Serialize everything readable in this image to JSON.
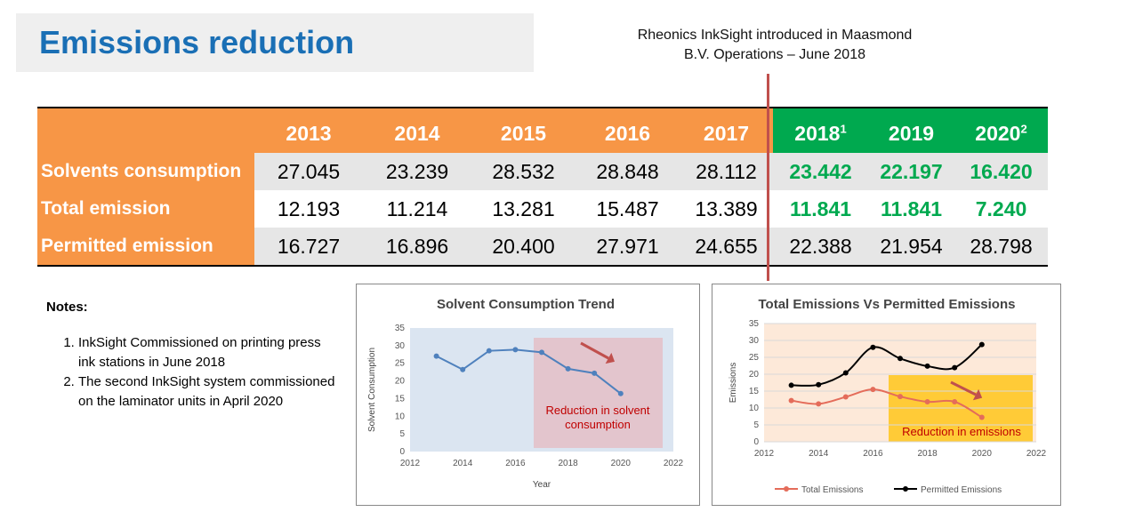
{
  "header": {
    "title": "Emissions reduction"
  },
  "intro_note": {
    "line1": "Rheonics InkSight introduced in Maasmond",
    "line2": "B.V. Operations – June 2018"
  },
  "table": {
    "years": [
      {
        "label": "2013",
        "sup": ""
      },
      {
        "label": "2014",
        "sup": ""
      },
      {
        "label": "2015",
        "sup": ""
      },
      {
        "label": "2016",
        "sup": ""
      },
      {
        "label": "2017",
        "sup": ""
      },
      {
        "label": "2018",
        "sup": "1"
      },
      {
        "label": "2019",
        "sup": ""
      },
      {
        "label": "2020",
        "sup": "2"
      }
    ],
    "rows": [
      {
        "label": "Solvents consumption",
        "values": [
          "27.045",
          "23.239",
          "28.532",
          "28.848",
          "28.112",
          "23.442",
          "22.197",
          "16.420"
        ]
      },
      {
        "label": "Total emission",
        "values": [
          "12.193",
          "11.214",
          "13.281",
          "15.487",
          "13.389",
          "11.841",
          "11.841",
          "7.240"
        ]
      },
      {
        "label": "Permitted emission",
        "values": [
          "16.727",
          "16.896",
          "20.400",
          "27.971",
          "24.655",
          "22.388",
          "21.954",
          "28.798"
        ]
      }
    ],
    "colors": {
      "header_orange": "#f79646",
      "header_green": "#00a94f",
      "highlight_text": "#00a94f"
    }
  },
  "notes": {
    "heading": "Notes:",
    "items": [
      "InkSight Commissioned on printing press ink stations in June 2018",
      "The second InkSight system commissioned on the laminator units in April 2020"
    ]
  },
  "chart_data": [
    {
      "type": "line",
      "title": "Solvent Consumption Trend",
      "xlabel": "Year",
      "ylabel": "Solvent Consumption",
      "xlim": [
        2012,
        2022
      ],
      "ylim": [
        0,
        35
      ],
      "xticks": [
        "2012",
        "2014",
        "2016",
        "2018",
        "2020",
        "2022"
      ],
      "yticks": [
        "0",
        "5",
        "10",
        "15",
        "20",
        "25",
        "30",
        "35"
      ],
      "series": [
        {
          "values": [
            {
              "x": 2013,
              "y": 27.045
            },
            {
              "x": 2014,
              "y": 23.239
            },
            {
              "x": 2015,
              "y": 28.532
            },
            {
              "x": 2016,
              "y": 28.848
            },
            {
              "x": 2017,
              "y": 28.112
            },
            {
              "x": 2018,
              "y": 23.442
            },
            {
              "x": 2019,
              "y": 22.197
            },
            {
              "x": 2020,
              "y": 16.42
            }
          ],
          "color": "#4f81bd"
        }
      ],
      "annotation": "Reduction in solvent consumption",
      "colors": {
        "background": "#dbe5f1",
        "highlight": "#e6b9c0",
        "arrow": "#c0504d"
      }
    },
    {
      "type": "line",
      "title": "Total Emissions Vs Permitted Emissions",
      "xlabel": "",
      "ylabel": "Emissions",
      "xlim": [
        2012,
        2022
      ],
      "ylim": [
        0,
        35
      ],
      "xticks": [
        "2012",
        "2014",
        "2016",
        "2018",
        "2020",
        "2022"
      ],
      "yticks": [
        "0",
        "5",
        "10",
        "15",
        "20",
        "25",
        "30",
        "35"
      ],
      "series": [
        {
          "name": "Total Emissions",
          "color": "#e46c5a",
          "values": [
            {
              "x": 2013,
              "y": 12.193
            },
            {
              "x": 2014,
              "y": 11.214
            },
            {
              "x": 2015,
              "y": 13.281
            },
            {
              "x": 2016,
              "y": 15.487
            },
            {
              "x": 2017,
              "y": 13.389
            },
            {
              "x": 2018,
              "y": 11.841
            },
            {
              "x": 2019,
              "y": 11.841
            },
            {
              "x": 2020,
              "y": 7.24
            }
          ]
        },
        {
          "name": "Permitted Emissions",
          "color": "#000000",
          "values": [
            {
              "x": 2013,
              "y": 16.727
            },
            {
              "x": 2014,
              "y": 16.896
            },
            {
              "x": 2015,
              "y": 20.4
            },
            {
              "x": 2016,
              "y": 27.971
            },
            {
              "x": 2017,
              "y": 24.655
            },
            {
              "x": 2018,
              "y": 22.388
            },
            {
              "x": 2019,
              "y": 21.954
            },
            {
              "x": 2020,
              "y": 28.798
            }
          ]
        }
      ],
      "legend_position": "bottom",
      "annotation": "Reduction in emissions",
      "colors": {
        "background": "#fde9d9",
        "highlight": "#ffc000",
        "arrow": "#c0504d"
      }
    }
  ]
}
